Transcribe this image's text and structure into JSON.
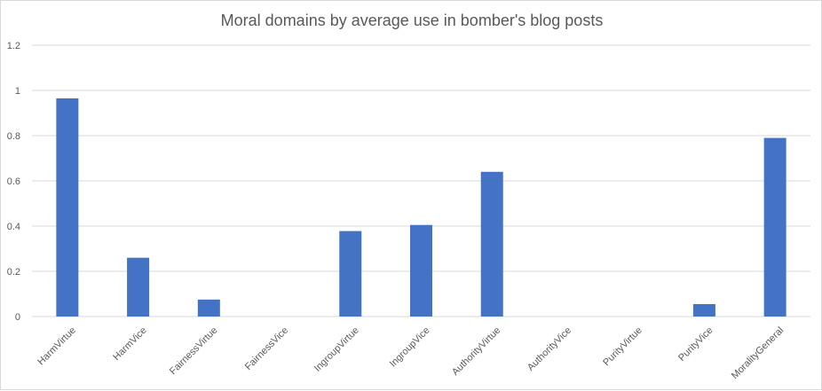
{
  "chart_data": {
    "type": "bar",
    "title": "Moral domains by average use in bomber's blog posts",
    "categories": [
      "HarmVirtue",
      "HarmVice",
      "FairnessVirtue",
      "FairnessVice",
      "IngroupVirtue",
      "IngroupVice",
      "AuthorityVirtue",
      "AuthorityVice",
      "PurityVirtue",
      "PurityVice",
      "MoralityGeneral"
    ],
    "values": [
      0.965,
      0.26,
      0.075,
      0,
      0.378,
      0.405,
      0.64,
      0,
      0,
      0.055,
      0.79
    ],
    "ylim": [
      0,
      1.2
    ],
    "yticks": [
      0,
      0.2,
      0.4,
      0.6,
      0.8,
      1,
      1.2
    ],
    "grid": true,
    "legend": "none",
    "colors": {
      "bar": "#4472C4",
      "grid": "#d9d9d9",
      "text": "#595959"
    }
  }
}
